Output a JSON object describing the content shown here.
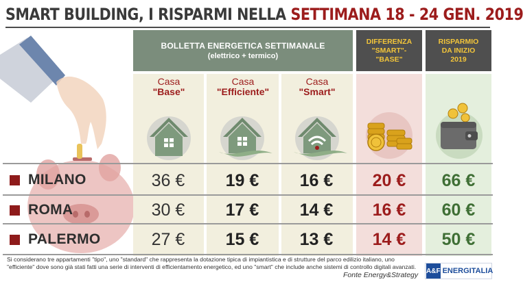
{
  "title": {
    "part1": "SMART BUILDING, I RISPARMI NELLA ",
    "part2": "SETTIMANA 18 - 24 GEN. 2019"
  },
  "header": {
    "main_line1": "BOLLETTA ENERGETICA SETTIMANALE",
    "main_line2": "(elettrico + termico)",
    "diff_line1": "DIFFERENZA",
    "diff_line2": "\"SMART\"-",
    "diff_line3": "\"BASE\"",
    "risp_line1": "RISPARMIO",
    "risp_line2": "DA INIZIO",
    "risp_line3": "2019"
  },
  "houses": [
    {
      "line1": "Casa",
      "line2": "\"Base\""
    },
    {
      "line1": "Casa",
      "line2": "\"Efficiente\""
    },
    {
      "line1": "Casa",
      "line2": "\"Smart\""
    }
  ],
  "rows": [
    {
      "city": "MILANO",
      "base": "36 €",
      "efficiente": "19 €",
      "smart": "16 €",
      "differenza": "20 €",
      "risparmio": "66 €"
    },
    {
      "city": "ROMA",
      "base": "30 €",
      "efficiente": "17 €",
      "smart": "14 €",
      "differenza": "16 €",
      "risparmio": "60 €"
    },
    {
      "city": "PALERMO",
      "base": "27 €",
      "efficiente": "15 €",
      "smart": "13 €",
      "differenza": "14 €",
      "risparmio": "50 €"
    }
  ],
  "footnote": "Si considerano tre appartamenti \"tipo\", uno \"standard\" che rappresenta la dotazione tipica di impiantistica e di strutture del parco edilizio italiano, uno \"efficiente\" dove sono già stati fatti una serie di interventi di efficientamento energetico, ed uno \"smart\" che include anche sistemi di controllo digitali avanzati.",
  "source": "Fonte Energy&Strategy",
  "logo": {
    "mark": "A&F",
    "text": "ENERGITALIA"
  },
  "colors": {
    "accent_red": "#9c1c1c",
    "accent_green": "#3f6f35",
    "header_green": "#7b8d7c",
    "header_dark": "#4f4f4f",
    "header_gold": "#f3c53a"
  },
  "icons": [
    "house-base-icon",
    "house-efficient-icon",
    "house-smart-icon",
    "coins-icon",
    "wallet-icon",
    "hand-icon",
    "piggy-bank-icon"
  ]
}
